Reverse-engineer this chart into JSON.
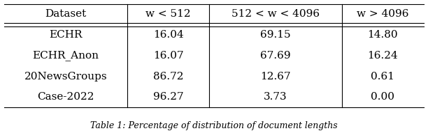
{
  "col_headers": [
    "Dataset",
    "w < 512",
    "512 < w < 4096",
    "w > 4096"
  ],
  "rows": [
    [
      "ECHR",
      "16.04",
      "69.15",
      "14.80"
    ],
    [
      "ECHR_Anon",
      "16.07",
      "67.69",
      "16.24"
    ],
    [
      "20NewsGroups",
      "86.72",
      "12.67",
      "0.61"
    ],
    [
      "Case-2022",
      "96.27",
      "3.73",
      "0.00"
    ]
  ],
  "figsize": [
    6.12,
    1.88
  ],
  "dpi": 100,
  "bg_color": "#ffffff",
  "text_color": "#000000",
  "line_color": "#000000",
  "font_size": 11,
  "caption": "Table 1: Percentage of distribution of document lengths"
}
